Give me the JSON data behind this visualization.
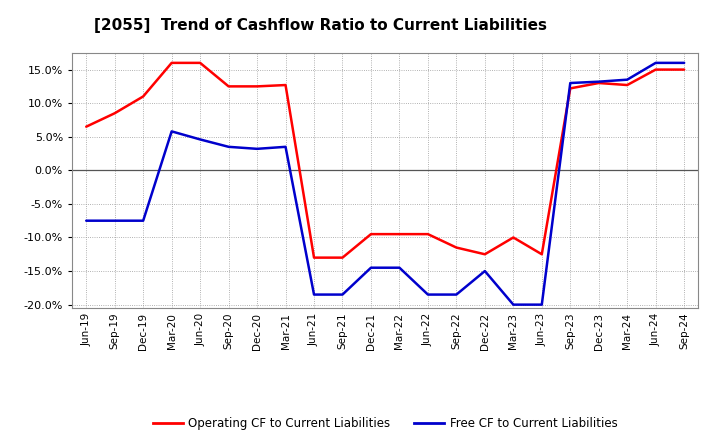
{
  "title": "[2055]  Trend of Cashflow Ratio to Current Liabilities",
  "x_labels": [
    "Jun-19",
    "Sep-19",
    "Dec-19",
    "Mar-20",
    "Jun-20",
    "Sep-20",
    "Dec-20",
    "Mar-21",
    "Jun-21",
    "Sep-21",
    "Dec-21",
    "Mar-22",
    "Jun-22",
    "Sep-22",
    "Dec-22",
    "Mar-23",
    "Jun-23",
    "Sep-23",
    "Dec-23",
    "Mar-24",
    "Jun-24",
    "Sep-24"
  ],
  "operating_cf": [
    6.5,
    8.5,
    11.0,
    16.0,
    16.0,
    12.5,
    12.5,
    12.7,
    -13.0,
    -13.0,
    -9.5,
    -9.5,
    -9.5,
    -11.5,
    -12.5,
    -10.0,
    -12.5,
    12.2,
    13.0,
    12.7,
    15.0,
    15.0
  ],
  "free_cf": [
    -7.5,
    -7.5,
    -7.5,
    5.8,
    4.6,
    3.5,
    3.2,
    3.5,
    -18.5,
    -18.5,
    -14.5,
    -14.5,
    -18.5,
    -18.5,
    -15.0,
    -20.0,
    -20.0,
    13.0,
    13.2,
    13.5,
    16.0,
    16.0
  ],
  "ylim": [
    -20.5,
    17.5
  ],
  "yticks": [
    -20.0,
    -15.0,
    -10.0,
    -5.0,
    0.0,
    5.0,
    10.0,
    15.0
  ],
  "operating_color": "#ff0000",
  "free_color": "#0000cc",
  "bg_color": "#ffffff",
  "plot_bg_color": "#ffffff",
  "grid_color": "#999999",
  "zero_line_color": "#555555",
  "legend_operating": "Operating CF to Current Liabilities",
  "legend_free": "Free CF to Current Liabilities"
}
